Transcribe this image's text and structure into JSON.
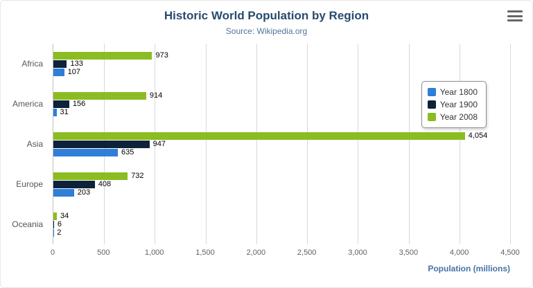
{
  "header": {
    "title": "Historic World Population by Region",
    "subtitle": "Source: Wikipedia.org"
  },
  "icons": {
    "context_menu": "hamburger"
  },
  "chart_data": {
    "type": "bar",
    "orientation": "horizontal",
    "title": "Historic World Population by Region",
    "subtitle": "Source: Wikipedia.org",
    "categories": [
      "Africa",
      "America",
      "Asia",
      "Europe",
      "Oceania"
    ],
    "series": [
      {
        "name": "Year 1800",
        "color": "#2f7ed8",
        "values": [
          107,
          31,
          635,
          203,
          2
        ]
      },
      {
        "name": "Year 1900",
        "color": "#0d233a",
        "values": [
          133,
          156,
          947,
          408,
          6
        ]
      },
      {
        "name": "Year 2008",
        "color": "#8bbc21",
        "values": [
          973,
          914,
          4054,
          732,
          34
        ]
      }
    ],
    "bar_order_top_to_bottom": [
      "Year 2008",
      "Year 1900",
      "Year 1800"
    ],
    "xlabel": "Population (millions)",
    "xlim": [
      0,
      4500
    ],
    "xticks": [
      0,
      500,
      1000,
      1500,
      2000,
      2500,
      3000,
      3500,
      4000,
      4500
    ],
    "grid": true,
    "legend_position": "right"
  }
}
